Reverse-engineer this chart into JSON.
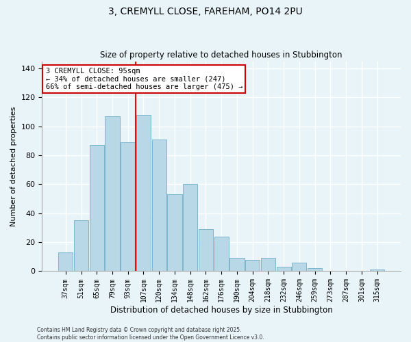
{
  "title1": "3, CREMYLL CLOSE, FAREHAM, PO14 2PU",
  "title2": "Size of property relative to detached houses in Stubbington",
  "xlabel": "Distribution of detached houses by size in Stubbington",
  "ylabel": "Number of detached properties",
  "categories": [
    "37sqm",
    "51sqm",
    "65sqm",
    "79sqm",
    "93sqm",
    "107sqm",
    "120sqm",
    "134sqm",
    "148sqm",
    "162sqm",
    "176sqm",
    "190sqm",
    "204sqm",
    "218sqm",
    "232sqm",
    "246sqm",
    "259sqm",
    "273sqm",
    "287sqm",
    "301sqm",
    "315sqm"
  ],
  "values": [
    13,
    35,
    87,
    107,
    89,
    108,
    91,
    53,
    60,
    29,
    24,
    9,
    8,
    9,
    3,
    6,
    2,
    0,
    0,
    0,
    1
  ],
  "bar_color": "#b8d8e8",
  "bar_edge_color": "#7db4ce",
  "vline_x_index": 4,
  "vline_color": "red",
  "annotation_line1": "3 CREMYLL CLOSE: 95sqm",
  "annotation_line2": "← 34% of detached houses are smaller (247)",
  "annotation_line3": "66% of semi-detached houses are larger (475) →",
  "annotation_box_color": "white",
  "annotation_box_edge": "#cc0000",
  "ylim": [
    0,
    145
  ],
  "yticks": [
    0,
    20,
    40,
    60,
    80,
    100,
    120,
    140
  ],
  "footnote1": "Contains HM Land Registry data © Crown copyright and database right 2025.",
  "footnote2": "Contains public sector information licensed under the Open Government Licence v3.0.",
  "background_color": "#e8f4f8",
  "grid_color": "#ffffff"
}
